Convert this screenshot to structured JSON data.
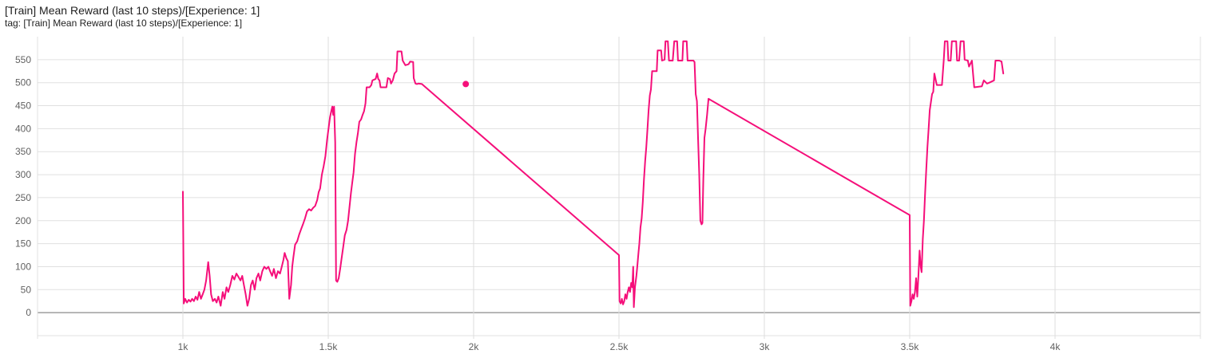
{
  "card": {
    "title": "[Train] Mean Reward (last 10 steps)/[Experience: 1]",
    "subtitle": "tag: [Train] Mean Reward (last 10 steps)/[Experience: 1]"
  },
  "chart_data": {
    "type": "line",
    "title": "[Train] Mean Reward (last 10 steps)/[Experience: 1]",
    "xlabel": "",
    "ylabel": "",
    "xlim": [
      500,
      4500
    ],
    "ylim": [
      -50,
      600
    ],
    "x_ticks": [
      1000,
      1500,
      2000,
      2500,
      3000,
      3500,
      4000
    ],
    "x_tick_labels": [
      "1k",
      "1.5k",
      "2k",
      "2.5k",
      "3k",
      "3.5k",
      "4k"
    ],
    "y_ticks": [
      0,
      50,
      100,
      150,
      200,
      250,
      300,
      350,
      400,
      450,
      500,
      550
    ],
    "y_tick_labels": [
      "0",
      "50",
      "100",
      "150",
      "200",
      "250",
      "300",
      "350",
      "400",
      "450",
      "500",
      "550"
    ],
    "grid": true,
    "legend": "none",
    "series_color": "#f50f7a",
    "highlight_point": {
      "x": 1973,
      "y": 497
    },
    "series": [
      {
        "values": [
          [
            1000,
            263
          ],
          [
            1003,
            20
          ],
          [
            1008,
            30
          ],
          [
            1014,
            22
          ],
          [
            1020,
            28
          ],
          [
            1026,
            24
          ],
          [
            1032,
            30
          ],
          [
            1038,
            25
          ],
          [
            1044,
            35
          ],
          [
            1050,
            28
          ],
          [
            1056,
            45
          ],
          [
            1062,
            30
          ],
          [
            1068,
            40
          ],
          [
            1074,
            50
          ],
          [
            1080,
            70
          ],
          [
            1087,
            110
          ],
          [
            1092,
            80
          ],
          [
            1097,
            40
          ],
          [
            1103,
            25
          ],
          [
            1110,
            30
          ],
          [
            1116,
            22
          ],
          [
            1122,
            35
          ],
          [
            1130,
            15
          ],
          [
            1137,
            45
          ],
          [
            1143,
            30
          ],
          [
            1150,
            55
          ],
          [
            1156,
            45
          ],
          [
            1163,
            60
          ],
          [
            1170,
            80
          ],
          [
            1177,
            72
          ],
          [
            1184,
            85
          ],
          [
            1191,
            78
          ],
          [
            1198,
            70
          ],
          [
            1204,
            80
          ],
          [
            1210,
            60
          ],
          [
            1216,
            40
          ],
          [
            1222,
            15
          ],
          [
            1228,
            30
          ],
          [
            1234,
            60
          ],
          [
            1240,
            70
          ],
          [
            1247,
            50
          ],
          [
            1253,
            75
          ],
          [
            1260,
            85
          ],
          [
            1266,
            70
          ],
          [
            1273,
            90
          ],
          [
            1280,
            100
          ],
          [
            1287,
            95
          ],
          [
            1294,
            100
          ],
          [
            1300,
            90
          ],
          [
            1307,
            80
          ],
          [
            1313,
            95
          ],
          [
            1320,
            75
          ],
          [
            1327,
            90
          ],
          [
            1334,
            85
          ],
          [
            1340,
            100
          ],
          [
            1346,
            115
          ],
          [
            1350,
            130
          ],
          [
            1356,
            118
          ],
          [
            1361,
            112
          ],
          [
            1366,
            30
          ],
          [
            1372,
            60
          ],
          [
            1376,
            100
          ],
          [
            1380,
            120
          ],
          [
            1386,
            148
          ],
          [
            1393,
            155
          ],
          [
            1400,
            170
          ],
          [
            1407,
            182
          ],
          [
            1413,
            192
          ],
          [
            1420,
            205
          ],
          [
            1427,
            220
          ],
          [
            1434,
            225
          ],
          [
            1441,
            222
          ],
          [
            1448,
            228
          ],
          [
            1455,
            232
          ],
          [
            1462,
            245
          ],
          [
            1467,
            262
          ],
          [
            1472,
            270
          ],
          [
            1478,
            300
          ],
          [
            1484,
            318
          ],
          [
            1490,
            340
          ],
          [
            1496,
            375
          ],
          [
            1502,
            405
          ],
          [
            1506,
            425
          ],
          [
            1511,
            440
          ],
          [
            1514,
            448
          ],
          [
            1517,
            430
          ],
          [
            1520,
            448
          ],
          [
            1524,
            370
          ],
          [
            1527,
            70
          ],
          [
            1531,
            67
          ],
          [
            1536,
            75
          ],
          [
            1541,
            95
          ],
          [
            1546,
            118
          ],
          [
            1552,
            145
          ],
          [
            1557,
            168
          ],
          [
            1563,
            180
          ],
          [
            1568,
            200
          ],
          [
            1574,
            235
          ],
          [
            1578,
            260
          ],
          [
            1583,
            285
          ],
          [
            1587,
            305
          ],
          [
            1592,
            345
          ],
          [
            1597,
            370
          ],
          [
            1602,
            390
          ],
          [
            1607,
            415
          ],
          [
            1613,
            420
          ],
          [
            1618,
            430
          ],
          [
            1623,
            438
          ],
          [
            1628,
            455
          ],
          [
            1632,
            490
          ],
          [
            1642,
            490
          ],
          [
            1648,
            495
          ],
          [
            1652,
            505
          ],
          [
            1663,
            508
          ],
          [
            1668,
            520
          ],
          [
            1672,
            508
          ],
          [
            1676,
            505
          ],
          [
            1680,
            490
          ],
          [
            1700,
            490
          ],
          [
            1705,
            510
          ],
          [
            1712,
            508
          ],
          [
            1716,
            498
          ],
          [
            1722,
            505
          ],
          [
            1728,
            520
          ],
          [
            1735,
            525
          ],
          [
            1738,
            568
          ],
          [
            1752,
            568
          ],
          [
            1756,
            548
          ],
          [
            1765,
            538
          ],
          [
            1776,
            540
          ],
          [
            1782,
            546
          ],
          [
            1792,
            545
          ],
          [
            1794,
            510
          ],
          [
            1800,
            498
          ],
          [
            1805,
            497
          ],
          [
            1810,
            498
          ],
          [
            1822,
            497
          ],
          [
            2500,
            125
          ],
          [
            2502,
            25
          ],
          [
            2506,
            20
          ],
          [
            2510,
            30
          ],
          [
            2514,
            18
          ],
          [
            2518,
            25
          ],
          [
            2522,
            40
          ],
          [
            2526,
            30
          ],
          [
            2530,
            45
          ],
          [
            2534,
            55
          ],
          [
            2538,
            45
          ],
          [
            2542,
            65
          ],
          [
            2546,
            55
          ],
          [
            2549,
            100
          ],
          [
            2551,
            12
          ],
          [
            2555,
            55
          ],
          [
            2560,
            80
          ],
          [
            2563,
            100
          ],
          [
            2567,
            130
          ],
          [
            2570,
            150
          ],
          [
            2574,
            185
          ],
          [
            2578,
            205
          ],
          [
            2582,
            240
          ],
          [
            2586,
            290
          ],
          [
            2590,
            330
          ],
          [
            2594,
            360
          ],
          [
            2598,
            400
          ],
          [
            2602,
            440
          ],
          [
            2606,
            472
          ],
          [
            2610,
            485
          ],
          [
            2614,
            525
          ],
          [
            2630,
            525
          ],
          [
            2633,
            570
          ],
          [
            2645,
            570
          ],
          [
            2648,
            548
          ],
          [
            2657,
            550
          ],
          [
            2660,
            590
          ],
          [
            2668,
            590
          ],
          [
            2672,
            548
          ],
          [
            2685,
            548
          ],
          [
            2690,
            590
          ],
          [
            2700,
            590
          ],
          [
            2703,
            548
          ],
          [
            2718,
            548
          ],
          [
            2721,
            590
          ],
          [
            2733,
            590
          ],
          [
            2736,
            548
          ],
          [
            2756,
            548
          ],
          [
            2760,
            545
          ],
          [
            2764,
            475
          ],
          [
            2768,
            460
          ],
          [
            2772,
            380
          ],
          [
            2776,
            300
          ],
          [
            2780,
            200
          ],
          [
            2784,
            192
          ],
          [
            2787,
            195
          ],
          [
            2790,
            290
          ],
          [
            2794,
            380
          ],
          [
            2798,
            400
          ],
          [
            2803,
            430
          ],
          [
            2808,
            465
          ],
          [
            3500,
            212
          ],
          [
            3502,
            15
          ],
          [
            3506,
            25
          ],
          [
            3510,
            40
          ],
          [
            3514,
            30
          ],
          [
            3518,
            45
          ],
          [
            3522,
            75
          ],
          [
            3526,
            35
          ],
          [
            3530,
            80
          ],
          [
            3534,
            135
          ],
          [
            3538,
            100
          ],
          [
            3541,
            88
          ],
          [
            3545,
            160
          ],
          [
            3549,
            200
          ],
          [
            3553,
            260
          ],
          [
            3557,
            310
          ],
          [
            3561,
            360
          ],
          [
            3565,
            400
          ],
          [
            3569,
            440
          ],
          [
            3573,
            458
          ],
          [
            3577,
            475
          ],
          [
            3581,
            480
          ],
          [
            3585,
            520
          ],
          [
            3593,
            495
          ],
          [
            3611,
            495
          ],
          [
            3617,
            548
          ],
          [
            3621,
            590
          ],
          [
            3630,
            590
          ],
          [
            3633,
            548
          ],
          [
            3641,
            548
          ],
          [
            3645,
            590
          ],
          [
            3660,
            590
          ],
          [
            3663,
            548
          ],
          [
            3670,
            548
          ],
          [
            3675,
            590
          ],
          [
            3686,
            590
          ],
          [
            3689,
            550
          ],
          [
            3700,
            548
          ],
          [
            3704,
            535
          ],
          [
            3714,
            548
          ],
          [
            3722,
            490
          ],
          [
            3748,
            492
          ],
          [
            3755,
            505
          ],
          [
            3766,
            498
          ],
          [
            3774,
            500
          ],
          [
            3790,
            505
          ],
          [
            3795,
            548
          ],
          [
            3808,
            548
          ],
          [
            3816,
            546
          ],
          [
            3822,
            520
          ]
        ]
      }
    ]
  }
}
